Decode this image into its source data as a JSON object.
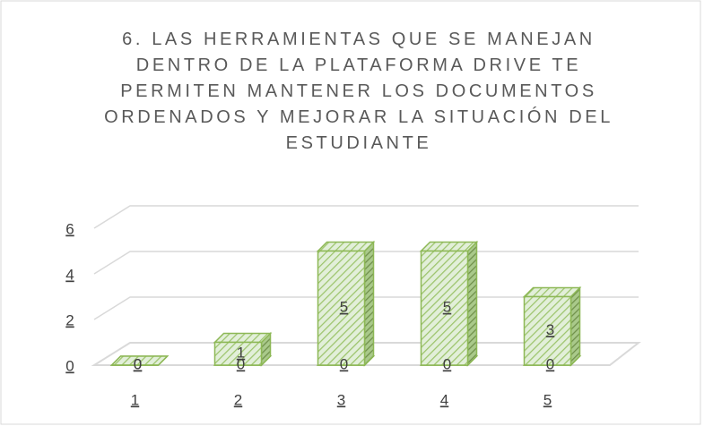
{
  "chart_data": {
    "type": "bar3d",
    "title": "6. LAS HERRAMIENTAS QUE SE MANEJAN DENTRO DE LA PLATAFORMA DRIVE TE PERMITEN MANTENER LOS DOCUMENTOS ORDENADOS Y MEJORAR LA SITUACIÓN DEL ESTUDIANTE",
    "categories": [
      "1",
      "2",
      "3",
      "4",
      "5"
    ],
    "series": [
      {
        "color": "#8db856",
        "values": [
          0,
          0,
          0,
          0,
          0
        ]
      },
      {
        "color": "#8db856",
        "values": [
          0,
          1,
          5,
          5,
          3
        ]
      }
    ],
    "ylim": [
      0,
      6
    ],
    "yticks": [
      0,
      2,
      4,
      6
    ],
    "grid": true
  }
}
